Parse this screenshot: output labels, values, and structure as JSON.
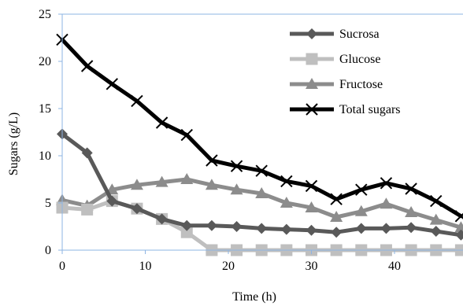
{
  "chart_data": {
    "type": "line",
    "xlabel": "Time (h)",
    "ylabel": "Sugars (g/L)",
    "xlim": [
      0,
      48
    ],
    "ylim": [
      0,
      25
    ],
    "x_ticks": [
      "0",
      "10",
      "20",
      "30",
      "40"
    ],
    "y_ticks": [
      "0",
      "5",
      "10",
      "15",
      "20",
      "25"
    ],
    "grid": false,
    "legend_position": "top-right",
    "x": [
      0,
      3,
      6,
      9,
      12,
      15,
      18,
      21,
      24,
      27,
      30,
      33,
      36,
      39,
      42,
      45,
      48
    ],
    "series": [
      {
        "name": "Sucrosa",
        "color": "#595959",
        "marker": "diamond",
        "values": [
          12.3,
          10.3,
          5.2,
          4.4,
          3.3,
          2.6,
          2.6,
          2.5,
          2.3,
          2.2,
          2.1,
          1.9,
          2.3,
          2.3,
          2.4,
          2.0,
          1.6
        ]
      },
      {
        "name": "Glucose",
        "color": "#bfbfbf",
        "marker": "square",
        "values": [
          4.5,
          4.3,
          5.2,
          4.4,
          3.3,
          1.9,
          0,
          0,
          0,
          0,
          0,
          0,
          0,
          0,
          0,
          0,
          0
        ]
      },
      {
        "name": "Fructose",
        "color": "#8c8c8c",
        "marker": "triangle",
        "values": [
          5.3,
          4.7,
          6.4,
          6.9,
          7.2,
          7.5,
          6.9,
          6.4,
          6.0,
          5.0,
          4.5,
          3.5,
          4.1,
          4.9,
          4.0,
          3.2,
          2.4
        ]
      },
      {
        "name": "Total sugars",
        "color": "#000000",
        "marker": "x",
        "values": [
          22.3,
          19.5,
          17.6,
          15.8,
          13.5,
          12.2,
          9.5,
          8.9,
          8.4,
          7.3,
          6.8,
          5.4,
          6.4,
          7.1,
          6.5,
          5.2,
          3.6
        ]
      }
    ]
  }
}
